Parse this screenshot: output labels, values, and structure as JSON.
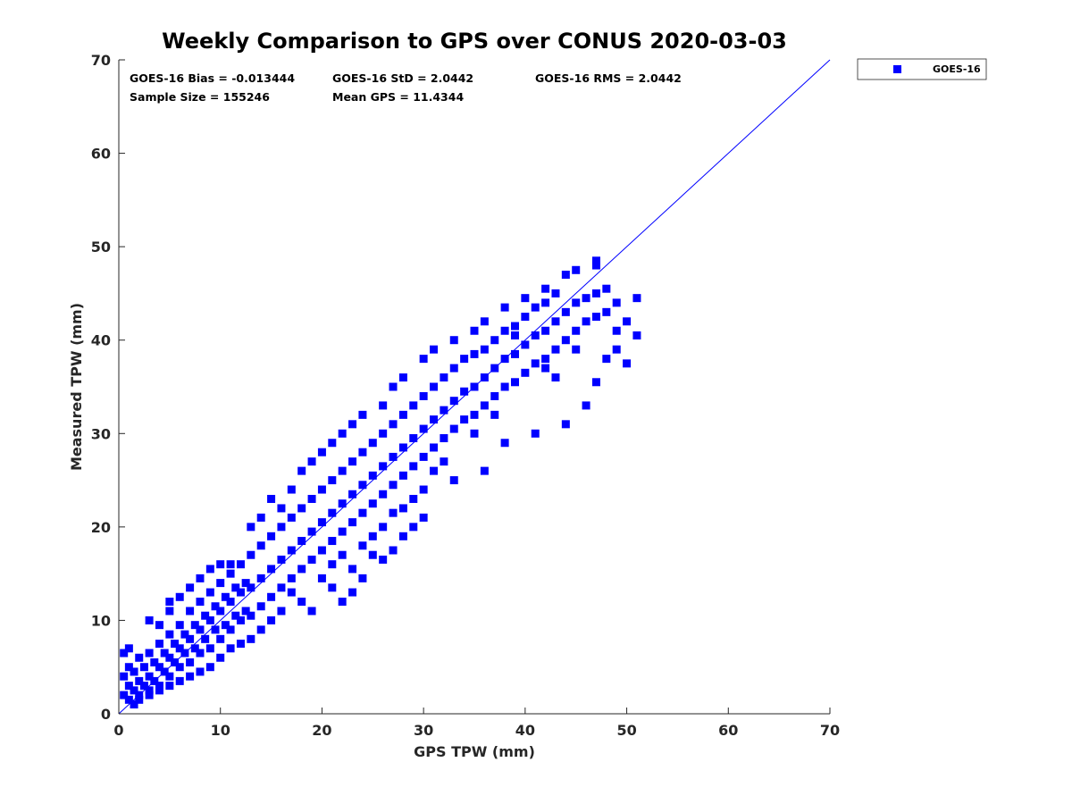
{
  "chart_data": {
    "type": "scatter",
    "title": "Weekly Comparison to GPS over CONUS 2020-03-03",
    "xlabel": "GPS TPW (mm)",
    "ylabel": "Measured TPW (mm)",
    "xlim": [
      0,
      70
    ],
    "ylim": [
      0,
      70
    ],
    "xticks": [
      "0",
      "10",
      "20",
      "30",
      "40",
      "50",
      "60",
      "70"
    ],
    "yticks": [
      "0",
      "10",
      "20",
      "30",
      "40",
      "50",
      "60",
      "70"
    ],
    "grid": false,
    "legend_position": "outside-top-right",
    "stats": [
      "GOES-16 Bias = -0.013444",
      "GOES-16 StD = 2.0442",
      "GOES-16 RMS = 2.0442",
      "Sample Size = 155246",
      "Mean GPS = 11.4344"
    ],
    "reference_line": {
      "type": "one-to-one",
      "x": [
        0,
        70
      ],
      "y": [
        0,
        70
      ]
    },
    "series": [
      {
        "name": "GOES-16",
        "color": "#0000ff",
        "marker": "square",
        "points": [
          [
            0.5,
            2
          ],
          [
            0.5,
            4
          ],
          [
            0.5,
            6.5
          ],
          [
            1,
            1.5
          ],
          [
            1,
            3
          ],
          [
            1,
            5
          ],
          [
            1,
            7
          ],
          [
            1.5,
            2.5
          ],
          [
            1.5,
            4.5
          ],
          [
            2,
            2
          ],
          [
            2,
            3.5
          ],
          [
            2,
            6
          ],
          [
            2.5,
            3
          ],
          [
            2.5,
            5
          ],
          [
            3,
            2.5
          ],
          [
            3,
            4
          ],
          [
            3,
            6.5
          ],
          [
            3.5,
            3.5
          ],
          [
            3.5,
            5.5
          ],
          [
            4,
            3
          ],
          [
            4,
            5
          ],
          [
            4,
            7.5
          ],
          [
            4.5,
            4.5
          ],
          [
            4.5,
            6.5
          ],
          [
            5,
            4
          ],
          [
            5,
            6
          ],
          [
            5,
            8.5
          ],
          [
            5,
            12
          ],
          [
            5.5,
            5.5
          ],
          [
            5.5,
            7.5
          ],
          [
            6,
            5
          ],
          [
            6,
            7
          ],
          [
            6,
            9.5
          ],
          [
            6.5,
            6.5
          ],
          [
            6.5,
            8.5
          ],
          [
            7,
            5.5
          ],
          [
            7,
            8
          ],
          [
            7,
            11
          ],
          [
            7.5,
            7
          ],
          [
            7.5,
            9.5
          ],
          [
            8,
            6.5
          ],
          [
            8,
            9
          ],
          [
            8,
            12
          ],
          [
            8.5,
            8
          ],
          [
            8.5,
            10.5
          ],
          [
            9,
            7
          ],
          [
            9,
            10
          ],
          [
            9,
            13
          ],
          [
            9.5,
            9
          ],
          [
            9.5,
            11.5
          ],
          [
            10,
            8
          ],
          [
            10,
            11
          ],
          [
            10,
            14
          ],
          [
            10.5,
            9.5
          ],
          [
            10.5,
            12.5
          ],
          [
            11,
            9
          ],
          [
            11,
            12
          ],
          [
            11,
            15
          ],
          [
            11.5,
            10.5
          ],
          [
            11.5,
            13.5
          ],
          [
            12,
            10
          ],
          [
            12,
            13
          ],
          [
            12,
            16
          ],
          [
            12.5,
            11
          ],
          [
            12.5,
            14
          ],
          [
            13,
            10.5
          ],
          [
            13,
            13.5
          ],
          [
            13,
            17
          ],
          [
            14,
            11.5
          ],
          [
            14,
            14.5
          ],
          [
            14,
            18
          ],
          [
            15,
            12.5
          ],
          [
            15,
            15.5
          ],
          [
            15,
            19
          ],
          [
            16,
            13.5
          ],
          [
            16,
            16.5
          ],
          [
            16,
            20
          ],
          [
            17,
            14.5
          ],
          [
            17,
            17.5
          ],
          [
            17,
            21
          ],
          [
            18,
            15.5
          ],
          [
            18,
            18.5
          ],
          [
            18,
            22
          ],
          [
            19,
            16.5
          ],
          [
            19,
            19.5
          ],
          [
            19,
            23
          ],
          [
            20,
            17.5
          ],
          [
            20,
            20.5
          ],
          [
            20,
            24
          ],
          [
            21,
            18.5
          ],
          [
            21,
            21.5
          ],
          [
            21,
            25
          ],
          [
            22,
            19.5
          ],
          [
            22,
            22.5
          ],
          [
            22,
            26
          ],
          [
            23,
            20.5
          ],
          [
            23,
            23.5
          ],
          [
            23,
            27
          ],
          [
            24,
            21.5
          ],
          [
            24,
            24.5
          ],
          [
            24,
            28
          ],
          [
            25,
            22.5
          ],
          [
            25,
            25.5
          ],
          [
            25,
            29
          ],
          [
            26,
            23.5
          ],
          [
            26,
            26.5
          ],
          [
            26,
            30
          ],
          [
            27,
            24.5
          ],
          [
            27,
            27.5
          ],
          [
            27,
            31
          ],
          [
            28,
            25.5
          ],
          [
            28,
            28.5
          ],
          [
            28,
            32
          ],
          [
            29,
            26.5
          ],
          [
            29,
            29.5
          ],
          [
            29,
            33
          ],
          [
            30,
            27.5
          ],
          [
            30,
            30.5
          ],
          [
            30,
            34
          ],
          [
            31,
            28.5
          ],
          [
            31,
            31.5
          ],
          [
            31,
            35
          ],
          [
            32,
            29.5
          ],
          [
            32,
            32.5
          ],
          [
            32,
            36
          ],
          [
            33,
            30.5
          ],
          [
            33,
            33.5
          ],
          [
            33,
            37
          ],
          [
            34,
            31.5
          ],
          [
            34,
            34.5
          ],
          [
            34,
            38
          ],
          [
            35,
            32
          ],
          [
            35,
            35
          ],
          [
            35,
            38.5
          ],
          [
            36,
            33
          ],
          [
            36,
            36
          ],
          [
            36,
            39
          ],
          [
            37,
            34
          ],
          [
            37,
            37
          ],
          [
            37,
            40
          ],
          [
            38,
            35
          ],
          [
            38,
            38
          ],
          [
            38,
            41
          ],
          [
            39,
            35.5
          ],
          [
            39,
            38.5
          ],
          [
            39,
            41.5
          ],
          [
            40,
            36.5
          ],
          [
            40,
            39.5
          ],
          [
            40,
            42.5
          ],
          [
            41,
            37.5
          ],
          [
            41,
            40.5
          ],
          [
            41,
            43.5
          ],
          [
            42,
            38
          ],
          [
            42,
            41
          ],
          [
            42,
            44
          ],
          [
            43,
            39
          ],
          [
            43,
            42
          ],
          [
            43,
            45
          ],
          [
            44,
            40
          ],
          [
            44,
            43
          ],
          [
            45,
            41
          ],
          [
            45,
            44
          ],
          [
            46,
            42
          ],
          [
            46,
            44.5
          ],
          [
            47,
            42.5
          ],
          [
            47,
            45
          ],
          [
            48,
            43
          ],
          [
            48,
            45.5
          ],
          [
            49,
            41
          ],
          [
            49,
            44
          ],
          [
            50,
            42
          ],
          [
            51,
            44.5
          ],
          [
            51,
            40.5
          ],
          [
            50,
            37.5
          ],
          [
            47,
            35.5
          ],
          [
            46,
            33
          ],
          [
            44,
            31
          ],
          [
            41,
            30
          ],
          [
            38,
            29
          ],
          [
            36,
            26
          ],
          [
            33,
            25
          ],
          [
            30,
            24
          ],
          [
            28,
            22
          ],
          [
            26,
            20
          ],
          [
            25,
            19
          ],
          [
            24,
            18
          ],
          [
            22,
            17
          ],
          [
            21,
            16
          ],
          [
            20,
            14.5
          ],
          [
            24,
            14.5
          ],
          [
            26,
            16.5
          ],
          [
            27,
            17.5
          ],
          [
            28,
            19
          ],
          [
            29,
            20
          ],
          [
            30,
            21
          ],
          [
            22,
            12
          ],
          [
            23,
            13
          ],
          [
            19,
            11
          ],
          [
            18,
            12
          ],
          [
            17,
            13
          ],
          [
            16,
            11
          ],
          [
            15,
            10
          ],
          [
            14,
            9
          ],
          [
            13,
            8
          ],
          [
            12,
            7.5
          ],
          [
            11,
            7
          ],
          [
            10,
            6
          ],
          [
            9,
            5
          ],
          [
            8,
            4.5
          ],
          [
            7,
            4
          ],
          [
            6,
            3.5
          ],
          [
            5,
            3
          ],
          [
            4,
            2.5
          ],
          [
            3,
            2
          ],
          [
            2,
            1.5
          ],
          [
            1.5,
            1
          ],
          [
            3,
            10
          ],
          [
            4,
            9.5
          ],
          [
            5,
            11
          ],
          [
            6,
            12.5
          ],
          [
            7,
            13.5
          ],
          [
            8,
            14.5
          ],
          [
            9,
            15.5
          ],
          [
            10,
            16
          ],
          [
            11,
            16
          ],
          [
            13,
            20
          ],
          [
            14,
            21
          ],
          [
            15,
            23
          ],
          [
            16,
            22
          ],
          [
            17,
            24
          ],
          [
            18,
            26
          ],
          [
            19,
            27
          ],
          [
            20,
            28
          ],
          [
            21,
            29
          ],
          [
            22,
            30
          ],
          [
            23,
            31
          ],
          [
            24,
            32
          ],
          [
            26,
            33
          ],
          [
            27,
            35
          ],
          [
            28,
            36
          ],
          [
            30,
            38
          ],
          [
            31,
            39
          ],
          [
            33,
            40
          ],
          [
            35,
            41
          ],
          [
            36,
            42
          ],
          [
            38,
            43.5
          ],
          [
            40,
            44.5
          ],
          [
            42,
            45.5
          ],
          [
            44,
            47
          ],
          [
            45,
            47.5
          ],
          [
            47,
            48.5
          ],
          [
            47,
            48
          ],
          [
            39,
            40.5
          ],
          [
            42,
            37
          ],
          [
            43,
            36
          ],
          [
            45,
            39
          ],
          [
            48,
            38
          ],
          [
            49,
            39
          ],
          [
            37,
            32
          ],
          [
            35,
            30
          ],
          [
            32,
            27
          ],
          [
            31,
            26
          ],
          [
            29,
            23
          ],
          [
            27,
            21.5
          ],
          [
            25,
            17
          ],
          [
            23,
            15.5
          ],
          [
            21,
            13.5
          ]
        ]
      }
    ]
  }
}
